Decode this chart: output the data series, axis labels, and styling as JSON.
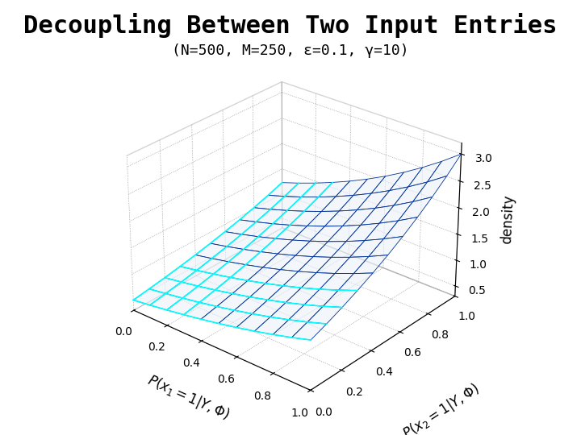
{
  "title": "Decoupling Between Two Input Entries",
  "subtitle": "(N=500, M=250, ε=0.1, γ=10)",
  "xlabel": "P(x_1 = 1|Y, Φ)",
  "ylabel": "P(x_2 = 1|Y, Φ)",
  "zlabel": "density",
  "x_ticks": [
    0,
    0.2,
    0.4,
    0.6,
    0.8,
    1
  ],
  "y_ticks": [
    0,
    0.2,
    0.4,
    0.6,
    0.8,
    1
  ],
  "z_ticks": [
    0.5,
    1,
    1.5,
    2,
    2.5,
    3
  ],
  "zlim": [
    0.3,
    3.2
  ],
  "background_color": "#ffffff",
  "title_fontsize": 22,
  "subtitle_fontsize": 13,
  "axis_label_fontsize": 12,
  "grid_n": 11,
  "elev": 28,
  "azim": -50
}
